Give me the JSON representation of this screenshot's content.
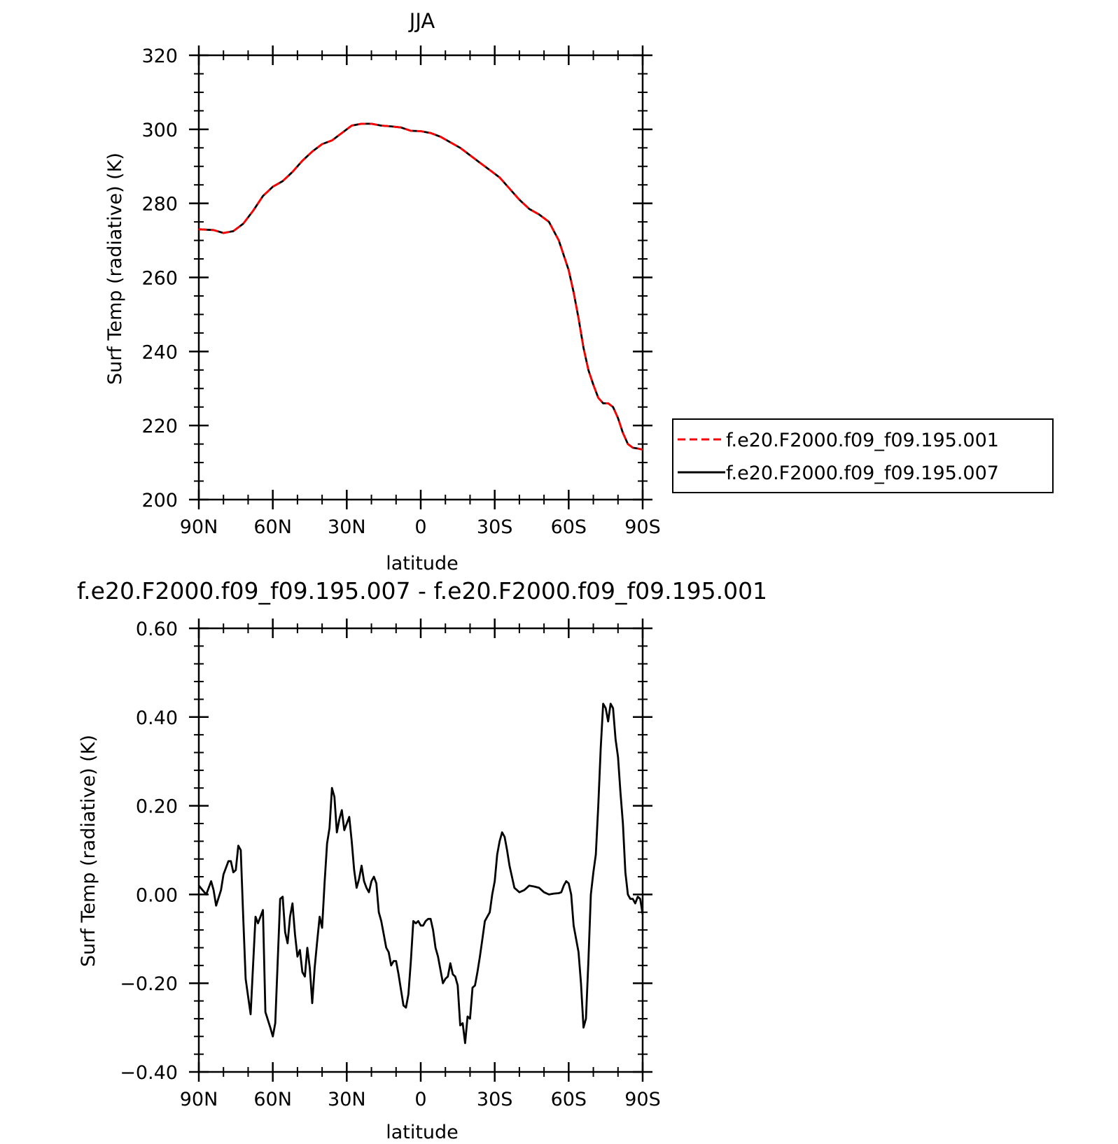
{
  "chart_data": [
    {
      "type": "line",
      "title": "JJA",
      "xlabel": "latitude",
      "ylabel": "Surf Temp (radiative) (K)",
      "xlim": [
        90,
        -90
      ],
      "ylim": [
        200,
        320
      ],
      "yticks": [
        200,
        220,
        240,
        260,
        280,
        300,
        320
      ],
      "ytick_labels": [
        "200",
        "220",
        "240",
        "260",
        "280",
        "300",
        "320"
      ],
      "xticks": [
        90,
        60,
        30,
        0,
        -30,
        -60,
        -90
      ],
      "xtick_labels": [
        "90N",
        "60N",
        "30N",
        "0",
        "30S",
        "60S",
        "90S"
      ],
      "legend_position": "right",
      "legend": [
        {
          "label": "f.e20.F2000.f09_f09.195.001",
          "color": "#ff0000",
          "dash": "dashed"
        },
        {
          "label": "f.e20.F2000.f09_f09.195.007",
          "color": "#000000",
          "dash": "solid"
        }
      ],
      "series": [
        {
          "name": "f.e20.F2000.f09_f09.195.001",
          "color": "#ff0000",
          "dash": "dashed",
          "x": [
            90,
            84,
            80,
            76,
            72,
            68,
            64,
            60,
            56,
            52,
            48,
            44,
            40,
            36,
            32,
            28,
            24,
            20,
            16,
            12,
            8,
            4,
            0,
            -4,
            -8,
            -12,
            -16,
            -20,
            -24,
            -28,
            -32,
            -36,
            -40,
            -44,
            -48,
            -52,
            -56,
            -60,
            -62,
            -64,
            -66,
            -68,
            -70,
            -72,
            -74,
            -76,
            -78,
            -80,
            -82,
            -84,
            -86,
            -88,
            -90
          ],
          "y": [
            273,
            272.8,
            272,
            272.5,
            274.5,
            278,
            282,
            284.5,
            286,
            288.5,
            291.5,
            294,
            296,
            297,
            299,
            301,
            301.5,
            301.5,
            301,
            300.8,
            300.5,
            299.6,
            299.5,
            299,
            298,
            296.5,
            295,
            293,
            291,
            289,
            287,
            284,
            281,
            278.5,
            277,
            275,
            270,
            262,
            256,
            249,
            241,
            235,
            231,
            227.5,
            226,
            226,
            225,
            222,
            218,
            215,
            214,
            213.8,
            213.5
          ]
        },
        {
          "name": "f.e20.F2000.f09_f09.195.007",
          "color": "#000000",
          "dash": "solid",
          "x": [
            90,
            84,
            80,
            76,
            72,
            68,
            64,
            60,
            56,
            52,
            48,
            44,
            40,
            36,
            32,
            28,
            24,
            20,
            16,
            12,
            8,
            4,
            0,
            -4,
            -8,
            -12,
            -16,
            -20,
            -24,
            -28,
            -32,
            -36,
            -40,
            -44,
            -48,
            -52,
            -56,
            -60,
            -62,
            -64,
            -66,
            -68,
            -70,
            -72,
            -74,
            -76,
            -78,
            -80,
            -82,
            -84,
            -86,
            -88,
            -90
          ],
          "y": [
            273,
            272.8,
            272,
            272.5,
            274.5,
            278,
            282,
            284.5,
            286,
            288.5,
            291.5,
            294,
            296,
            297,
            299,
            301,
            301.5,
            301.5,
            301,
            300.8,
            300.5,
            299.6,
            299.5,
            299,
            298,
            296.5,
            295,
            293,
            291,
            289,
            287,
            284,
            281,
            278.5,
            277,
            275,
            270,
            262,
            256,
            249,
            241,
            235,
            231,
            227.5,
            226,
            226,
            225,
            222,
            218,
            215,
            214,
            213.8,
            213.5
          ]
        }
      ]
    },
    {
      "type": "line",
      "title": "f.e20.F2000.f09_f09.195.007 - f.e20.F2000.f09_f09.195.001",
      "xlabel": "latitude",
      "ylabel": "Surf Temp (radiative) (K)",
      "xlim": [
        90,
        -90
      ],
      "ylim": [
        -0.4,
        0.6
      ],
      "yticks": [
        -0.4,
        -0.2,
        0,
        0.2,
        0.4,
        0.6
      ],
      "ytick_labels": [
        "-0.40",
        "-0.20",
        "0.00",
        "0.20",
        "0.40",
        "0.60"
      ],
      "xticks": [
        90,
        60,
        30,
        0,
        -30,
        -60,
        -90
      ],
      "xtick_labels": [
        "90N",
        "60N",
        "30N",
        "0",
        "30S",
        "60S",
        "90S"
      ],
      "series": [
        {
          "color": "#000000",
          "dash": "solid",
          "x": [
            90,
            87,
            85,
            84,
            83,
            81,
            80,
            78,
            77,
            76,
            75,
            74,
            73,
            72,
            71,
            70,
            69,
            67,
            66,
            64,
            63,
            61,
            60,
            59,
            58,
            57,
            56,
            55,
            54,
            53,
            52,
            51,
            50,
            49,
            48,
            47,
            46,
            45,
            44,
            43,
            42,
            41,
            40,
            39,
            38,
            37,
            36,
            35,
            34,
            33,
            32,
            31,
            30,
            29,
            28,
            27,
            26,
            25,
            24,
            23,
            22,
            21,
            20,
            19,
            18,
            17,
            16,
            15,
            14,
            13,
            12,
            11,
            10,
            9,
            8,
            7,
            6,
            5,
            4,
            3,
            2,
            1,
            0,
            -1,
            -2,
            -3,
            -4,
            -5,
            -6,
            -7,
            -8,
            -9,
            -10,
            -11,
            -12,
            -13,
            -14,
            -15,
            -16,
            -17,
            -18,
            -19,
            -20,
            -21,
            -22,
            -23,
            -24,
            -25,
            -26,
            -27,
            -28,
            -29,
            -30,
            -31,
            -32,
            -33,
            -34,
            -35,
            -36,
            -38,
            -40,
            -42,
            -44,
            -46,
            -48,
            -50,
            -52,
            -54,
            -56,
            -57,
            -58,
            -59,
            -60,
            -61,
            -62,
            -63,
            -64,
            -65,
            -66,
            -67,
            -68,
            -69,
            -70,
            -71,
            -72,
            -73,
            -74,
            -75,
            -76,
            -77,
            -78,
            -79,
            -80,
            -81,
            -82,
            -83,
            -84,
            -85,
            -86,
            -87,
            -88,
            -89,
            -90
          ],
          "y": [
            0.02,
            0,
            0.03,
            0.01,
            -0.025,
            0.01,
            0.045,
            0.075,
            0.075,
            0.05,
            0.055,
            0.11,
            0.1,
            -0.05,
            -0.19,
            -0.23,
            -0.27,
            -0.05,
            -0.065,
            -0.035,
            -0.265,
            -0.3,
            -0.32,
            -0.29,
            -0.15,
            -0.01,
            -0.005,
            -0.085,
            -0.11,
            -0.05,
            -0.02,
            -0.09,
            -0.14,
            -0.125,
            -0.175,
            -0.185,
            -0.12,
            -0.165,
            -0.245,
            -0.165,
            -0.105,
            -0.05,
            -0.075,
            0.025,
            0.115,
            0.15,
            0.24,
            0.22,
            0.14,
            0.17,
            0.19,
            0.145,
            0.16,
            0.175,
            0.12,
            0.055,
            0.015,
            0.035,
            0.065,
            0.03,
            0.015,
            0.005,
            0.03,
            0.04,
            0.025,
            -0.04,
            -0.06,
            -0.09,
            -0.12,
            -0.13,
            -0.16,
            -0.15,
            -0.15,
            -0.18,
            -0.215,
            -0.25,
            -0.255,
            -0.225,
            -0.15,
            -0.06,
            -0.065,
            -0.06,
            -0.07,
            -0.07,
            -0.06,
            -0.055,
            -0.055,
            -0.08,
            -0.12,
            -0.14,
            -0.17,
            -0.2,
            -0.19,
            -0.185,
            -0.155,
            -0.18,
            -0.185,
            -0.205,
            -0.295,
            -0.29,
            -0.335,
            -0.275,
            -0.28,
            -0.21,
            -0.205,
            -0.175,
            -0.14,
            -0.1,
            -0.06,
            -0.05,
            -0.04,
            0.0,
            0.03,
            0.09,
            0.12,
            0.14,
            0.13,
            0.1,
            0.065,
            0.015,
            0.005,
            0.01,
            0.02,
            0.018,
            0.015,
            0.005,
            0.0,
            0.002,
            0.003,
            0.005,
            0.02,
            0.03,
            0.025,
            0.0,
            -0.07,
            -0.1,
            -0.13,
            -0.2,
            -0.3,
            -0.28,
            -0.15,
            0.0,
            0.05,
            0.09,
            0.2,
            0.33,
            0.43,
            0.42,
            0.39,
            0.43,
            0.42,
            0.35,
            0.31,
            0.23,
            0.16,
            0.05,
            0.0,
            -0.01,
            -0.01,
            -0.02,
            -0.005,
            -0.01,
            -0.045
          ]
        }
      ]
    }
  ]
}
